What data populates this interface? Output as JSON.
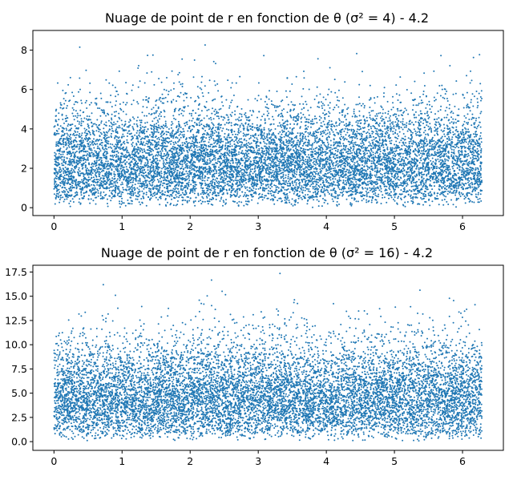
{
  "chart_data": [
    {
      "type": "scatter",
      "title": "Nuage de point de r en fonction de θ (σ² = 4) - 4.2",
      "xlabel": "",
      "ylabel": "",
      "xlim": [
        -0.31,
        6.6
      ],
      "ylim": [
        -0.4,
        9.0
      ],
      "xticks": [
        0,
        1,
        2,
        3,
        4,
        5,
        6
      ],
      "yticks": [
        0,
        2,
        4,
        6,
        8
      ],
      "xtick_labels": [
        "0",
        "1",
        "2",
        "3",
        "4",
        "5",
        "6"
      ],
      "ytick_labels": [
        "0",
        "2",
        "4",
        "6",
        "8"
      ],
      "grid": false,
      "marker_color": "#1f77b4",
      "n_points": 10000,
      "theta_range": [
        0,
        6.283
      ],
      "distribution": "r follows a Rayleigh distribution with σ² = 4 (mode ≈ 2, max ≈ 8.6), θ uniform on [0, 2π]",
      "max_value": 8.6
    },
    {
      "type": "scatter",
      "title": "Nuage de point de r en fonction de θ (σ² = 16) - 4.2",
      "xlabel": "",
      "ylabel": "",
      "xlim": [
        -0.31,
        6.6
      ],
      "ylim": [
        -0.9,
        18.2
      ],
      "xticks": [
        0,
        1,
        2,
        3,
        4,
        5,
        6
      ],
      "yticks": [
        0,
        2.5,
        5,
        7.5,
        10,
        12.5,
        15,
        17.5
      ],
      "xtick_labels": [
        "0",
        "1",
        "2",
        "3",
        "4",
        "5",
        "6"
      ],
      "ytick_labels": [
        "0.0",
        "2.5",
        "5.0",
        "7.5",
        "10.0",
        "12.5",
        "15.0",
        "17.5"
      ],
      "grid": false,
      "marker_color": "#1f77b4",
      "n_points": 10000,
      "theta_range": [
        0,
        6.283
      ],
      "distribution": "r follows a Rayleigh distribution with σ² = 16 (mode ≈ 4, max ≈ 17.6), θ uniform on [0, 2π]",
      "max_value": 17.6
    }
  ]
}
